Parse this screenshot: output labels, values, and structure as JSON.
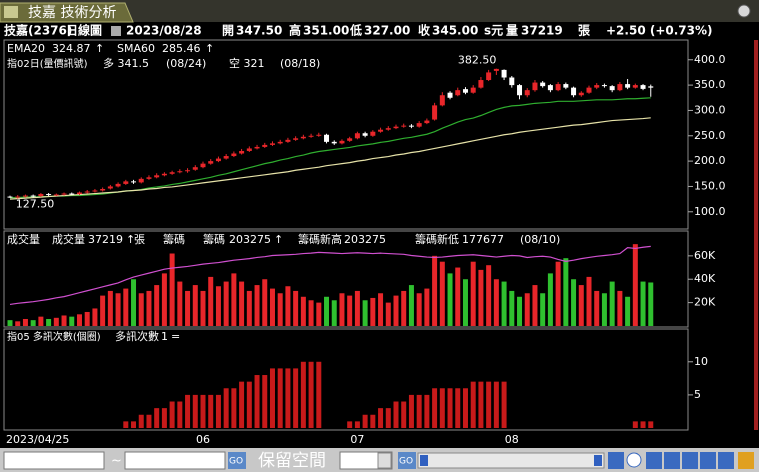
{
  "window": {
    "title": "技嘉 技術分析"
  },
  "header": {
    "stock": "技嘉(2376)",
    "period": "日線圖",
    "date": "2023/08/28",
    "open_label": "開",
    "open": "347.50",
    "high_label": "高",
    "high": "351.00",
    "low_label": "低",
    "low": "327.00",
    "close_label": "收",
    "close": "345.00",
    "unit": "s元",
    "volume_label": "量",
    "volume": "37219",
    "volume_unit": "張",
    "change": "+2.50 (+0.73%)"
  },
  "chart_data": [
    {
      "type": "candlestick",
      "indicator": "指02日(量價訊號)",
      "long_signal": "多 341.5",
      "long_date": "(08/24)",
      "short_signal": "空 321",
      "short_date": "(08/18)",
      "up_color": "#e8262a",
      "down_color": "#ffffff",
      "open": [
        130,
        128,
        130,
        132,
        131,
        135,
        133,
        134,
        136,
        135,
        138,
        140,
        142,
        146,
        150,
        155,
        160,
        158,
        165,
        168,
        172,
        175,
        178,
        180,
        183,
        188,
        195,
        200,
        205,
        210,
        215,
        220,
        225,
        228,
        232,
        235,
        238,
        242,
        245,
        248,
        250,
        252,
        238,
        235,
        240,
        245,
        255,
        250,
        258,
        262,
        265,
        270,
        270,
        268,
        275,
        282,
        310,
        335,
        330,
        342,
        335,
        345,
        360,
        378,
        380,
        365,
        350,
        330,
        340,
        355,
        350,
        340,
        352,
        345,
        330,
        335,
        345,
        350,
        348,
        340,
        352,
        345,
        350,
        347.5
      ],
      "high": [
        132,
        133,
        134,
        134,
        137,
        137,
        136,
        138,
        138,
        140,
        143,
        145,
        148,
        153,
        158,
        163,
        163,
        168,
        172,
        176,
        178,
        181,
        184,
        186,
        192,
        199,
        204,
        209,
        214,
        219,
        224,
        229,
        232,
        236,
        239,
        242,
        246,
        249,
        252,
        254,
        256,
        254,
        241,
        243,
        248,
        258,
        258,
        261,
        266,
        269,
        272,
        274,
        273,
        279,
        284,
        315,
        336,
        338,
        345,
        346,
        350,
        366,
        380,
        382.5,
        381,
        368,
        352,
        344,
        360,
        358,
        352,
        356,
        355,
        347,
        338,
        349,
        354,
        353,
        350,
        356,
        362,
        353,
        352,
        351
      ],
      "low": [
        127.5,
        126,
        128,
        128,
        129,
        131,
        131,
        132,
        133,
        133,
        136,
        138,
        140,
        144,
        148,
        153,
        155,
        156,
        163,
        166,
        170,
        173,
        176,
        177,
        181,
        186,
        193,
        198,
        203,
        208,
        213,
        218,
        223,
        226,
        230,
        233,
        236,
        240,
        243,
        246,
        248,
        235,
        232,
        233,
        238,
        243,
        247,
        248,
        256,
        260,
        263,
        266,
        265,
        266,
        273,
        280,
        308,
        322,
        328,
        332,
        333,
        343,
        358,
        370,
        360,
        345,
        322,
        326,
        337,
        345,
        336,
        338,
        342,
        326,
        327,
        333,
        342,
        345,
        336,
        338,
        342,
        343,
        340,
        327
      ],
      "close": [
        128,
        130,
        132,
        130,
        135,
        133,
        134,
        136,
        135,
        138,
        140,
        142,
        145,
        150,
        155,
        160,
        158,
        165,
        168,
        172,
        175,
        178,
        180,
        182,
        188,
        195,
        200,
        205,
        210,
        215,
        220,
        225,
        228,
        232,
        235,
        238,
        242,
        245,
        248,
        250,
        252,
        238,
        235,
        240,
        245,
        255,
        250,
        258,
        262,
        265,
        268,
        270,
        268,
        275,
        280,
        310,
        330,
        325,
        340,
        335,
        345,
        360,
        375,
        382,
        365,
        350,
        330,
        340,
        355,
        348,
        340,
        352,
        345,
        330,
        335,
        345,
        350,
        348,
        340,
        352,
        345,
        350,
        342.5,
        345
      ],
      "series": [
        {
          "name": "EMA20",
          "color": "#2fae2f",
          "values": [
            128,
            128,
            129,
            129,
            130,
            130,
            131,
            131,
            132,
            132,
            133,
            134,
            135,
            137,
            139,
            141,
            142,
            144,
            147,
            149,
            151,
            154,
            156,
            159,
            162,
            165,
            168,
            172,
            175,
            179,
            183,
            187,
            191,
            195,
            198,
            202,
            205,
            209,
            212,
            216,
            219,
            221,
            223,
            225,
            227,
            230,
            232,
            234,
            237,
            239,
            242,
            245,
            247,
            250,
            253,
            258,
            265,
            271,
            277,
            282,
            285,
            290,
            296,
            302,
            306,
            309,
            310,
            312,
            314,
            315,
            316,
            318,
            318,
            318,
            319,
            320,
            321,
            321,
            321,
            322,
            323,
            323,
            324,
            324.87
          ]
        },
        {
          "name": "SMA60",
          "color": "#e6e2a8",
          "values": [
            125,
            126,
            127,
            128,
            129,
            130,
            131,
            132,
            133,
            134,
            135,
            136,
            137,
            138,
            139,
            141,
            142,
            143,
            145,
            146,
            148,
            149,
            151,
            153,
            155,
            157,
            159,
            161,
            163,
            165,
            167,
            169,
            171,
            173,
            175,
            177,
            179,
            182,
            184,
            186,
            188,
            191,
            193,
            195,
            197,
            200,
            202,
            205,
            207,
            209,
            212,
            214,
            217,
            219,
            222,
            225,
            228,
            231,
            234,
            237,
            240,
            243,
            246,
            249,
            252,
            254,
            257,
            259,
            261,
            263,
            265,
            267,
            269,
            271,
            272,
            274,
            276,
            278,
            280,
            281,
            282,
            283,
            284,
            285.46
          ]
        }
      ],
      "annotations": [
        "382.50",
        "127.50"
      ],
      "ylim": [
        68,
        439
      ],
      "yticks": [
        {
          "value": 100,
          "label": "100.0"
        },
        {
          "value": 150,
          "label": "150.0"
        },
        {
          "value": 200,
          "label": "200.0"
        },
        {
          "value": 250,
          "label": "250.0"
        },
        {
          "value": 300,
          "label": "300.0"
        },
        {
          "value": 350,
          "label": "350.0"
        },
        {
          "value": 400,
          "label": "400.0"
        }
      ]
    },
    {
      "type": "volume",
      "volume_unit": "張",
      "high_label": "籌碼新高",
      "high_value": "203275",
      "low_label": "籌碼新低",
      "low_value": "177677",
      "low_date": "(08/10)",
      "series": [
        {
          "name": "成交量",
          "up_color": "#e8262a",
          "down_color": "#2fc02f",
          "values": [
            5000,
            4000,
            6000,
            5000,
            8000,
            6000,
            7000,
            9000,
            8000,
            10000,
            12000,
            15000,
            26000,
            30000,
            28000,
            32000,
            40000,
            28000,
            30000,
            35000,
            45000,
            62000,
            38000,
            30000,
            35000,
            30000,
            42000,
            34000,
            38000,
            45000,
            38000,
            30000,
            35000,
            40000,
            32000,
            28000,
            34000,
            30000,
            25000,
            22000,
            20000,
            25000,
            22000,
            28000,
            26000,
            30000,
            22000,
            24000,
            28000,
            20000,
            26000,
            30000,
            35000,
            28000,
            32000,
            60000,
            55000,
            45000,
            50000,
            40000,
            55000,
            48000,
            52000,
            40000,
            38000,
            30000,
            25000,
            28000,
            35000,
            28000,
            45000,
            55000,
            58000,
            40000,
            35000,
            42000,
            30000,
            28000,
            38000,
            30000,
            25000,
            70000,
            38000,
            37219
          ]
        },
        {
          "name": "籌碼",
          "color": "#d050d0",
          "axis": "y2",
          "values": [
            55000,
            58000,
            60000,
            62000,
            65000,
            68000,
            72000,
            75000,
            80000,
            85000,
            90000,
            95000,
            100000,
            105000,
            110000,
            118000,
            125000,
            130000,
            135000,
            140000,
            145000,
            148000,
            150000,
            152000,
            155000,
            158000,
            160000,
            162000,
            165000,
            168000,
            170000,
            172000,
            175000,
            177000,
            180000,
            181000,
            182000,
            183000,
            185000,
            186000,
            188000,
            187000,
            186000,
            185000,
            186000,
            187000,
            186000,
            185000,
            186000,
            185000,
            184000,
            183000,
            180000,
            178000,
            176000,
            175000,
            176000,
            178000,
            180000,
            181000,
            182000,
            180000,
            178000,
            176000,
            178000,
            180000,
            179000,
            175000,
            177000,
            178000,
            176000,
            170000,
            165000,
            168000,
            172000,
            175000,
            178000,
            180000,
            182000,
            185000,
            200000,
            198000,
            201000,
            203275
          ]
        }
      ],
      "ylim": [
        0,
        80400
      ],
      "yticks": [
        {
          "value": 20000,
          "label": "20K"
        },
        {
          "value": 40000,
          "label": "40K"
        },
        {
          "value": 60000,
          "label": "60K"
        }
      ],
      "y2lim": [
        0,
        240000
      ]
    },
    {
      "type": "bar",
      "title": "指05 多訊次數(個圈)",
      "legend": "多訊次數",
      "legend_suffix": "=",
      "color": "#c81a1a",
      "values": [
        0,
        0,
        0,
        0,
        0,
        0,
        0,
        0,
        0,
        0,
        0,
        0,
        0,
        0,
        0,
        1,
        1,
        2,
        2,
        3,
        3,
        4,
        4,
        5,
        5,
        5,
        5,
        5,
        6,
        6,
        7,
        7,
        8,
        8,
        9,
        9,
        9,
        9,
        10,
        10,
        10,
        0,
        0,
        0,
        1,
        1,
        2,
        2,
        3,
        3,
        4,
        4,
        5,
        5,
        5,
        6,
        6,
        6,
        6,
        6,
        7,
        7,
        7,
        7,
        7,
        0,
        0,
        0,
        0,
        0,
        0,
        0,
        0,
        0,
        0,
        0,
        0,
        0,
        0,
        0,
        0,
        1,
        1,
        1
      ],
      "categories": [
        "2023/04/25",
        null,
        null,
        null,
        null,
        null,
        null,
        null,
        null,
        null,
        null,
        null,
        null,
        null,
        null,
        null,
        null,
        null,
        null,
        null,
        null,
        null,
        null,
        null,
        null,
        "06",
        null,
        null,
        null,
        null,
        null,
        null,
        null,
        null,
        null,
        null,
        null,
        null,
        null,
        null,
        null,
        null,
        null,
        null,
        null,
        "07",
        null,
        null,
        null,
        null,
        null,
        null,
        null,
        null,
        null,
        null,
        null,
        null,
        null,
        null,
        null,
        null,
        null,
        null,
        null,
        "08",
        null,
        null,
        null,
        null,
        null,
        null,
        null,
        null,
        null,
        null,
        null,
        null,
        null,
        null,
        null,
        null,
        null,
        null
      ],
      "ylim": [
        0,
        14.8
      ],
      "yticks": [
        5,
        10
      ]
    }
  ],
  "toolbar": {
    "start": "2023/04/25",
    "separator": "~",
    "end": "2023/08/28",
    "go": "GO",
    "reserve": "保留空間",
    "count": "5",
    "go2": "GO"
  }
}
